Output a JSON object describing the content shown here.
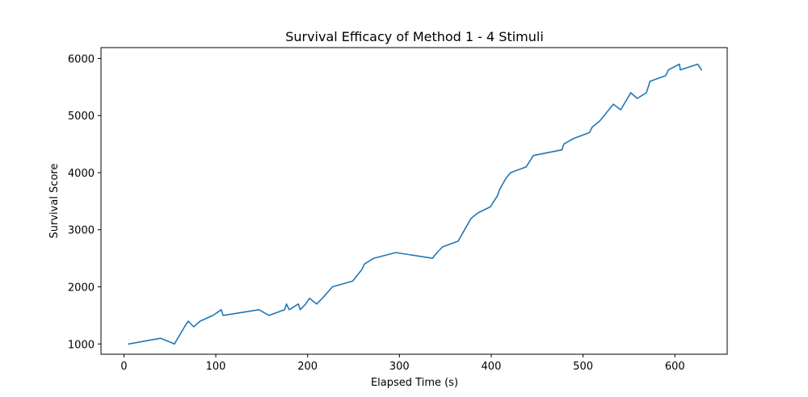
{
  "chart_data": {
    "type": "line",
    "title": "Survival Efficacy of Method 1 - 4 Stimuli",
    "xlabel": "Elapsed Time (s)",
    "ylabel": "Survival Score",
    "xlim": [
      -25,
      657
    ],
    "ylim": [
      820,
      6190
    ],
    "xticks": [
      0,
      100,
      200,
      300,
      400,
      500,
      600
    ],
    "yticks": [
      1000,
      2000,
      3000,
      4000,
      5000,
      6000
    ],
    "grid": false,
    "series": [
      {
        "color": "#1f77b4",
        "x": [
          5,
          40,
          55,
          66,
          70,
          76,
          83,
          97,
          106,
          108,
          147,
          158,
          175,
          177,
          180,
          190,
          192,
          198,
          202,
          210,
          216,
          227,
          249,
          259,
          262,
          272,
          296,
          336,
          341,
          347,
          364,
          371,
          378,
          386,
          399,
          407,
          409,
          416,
          421,
          438,
          446,
          477,
          479,
          490,
          507,
          510,
          518,
          523,
          528,
          533,
          541,
          552,
          559,
          569,
          573,
          590,
          593,
          605,
          606,
          625,
          629
        ],
        "y": [
          1000,
          1100,
          1000,
          1300,
          1400,
          1300,
          1400,
          1500,
          1600,
          1500,
          1600,
          1500,
          1600,
          1700,
          1600,
          1700,
          1600,
          1700,
          1800,
          1700,
          1800,
          2000,
          2100,
          2300,
          2400,
          2500,
          2600,
          2500,
          2600,
          2700,
          2800,
          3000,
          3200,
          3300,
          3400,
          3600,
          3700,
          3900,
          4000,
          4100,
          4300,
          4400,
          4500,
          4600,
          4700,
          4800,
          4900,
          5000,
          5100,
          5200,
          5100,
          5400,
          5300,
          5400,
          5600,
          5700,
          5800,
          5900,
          5800,
          5900,
          5800
        ]
      }
    ]
  }
}
